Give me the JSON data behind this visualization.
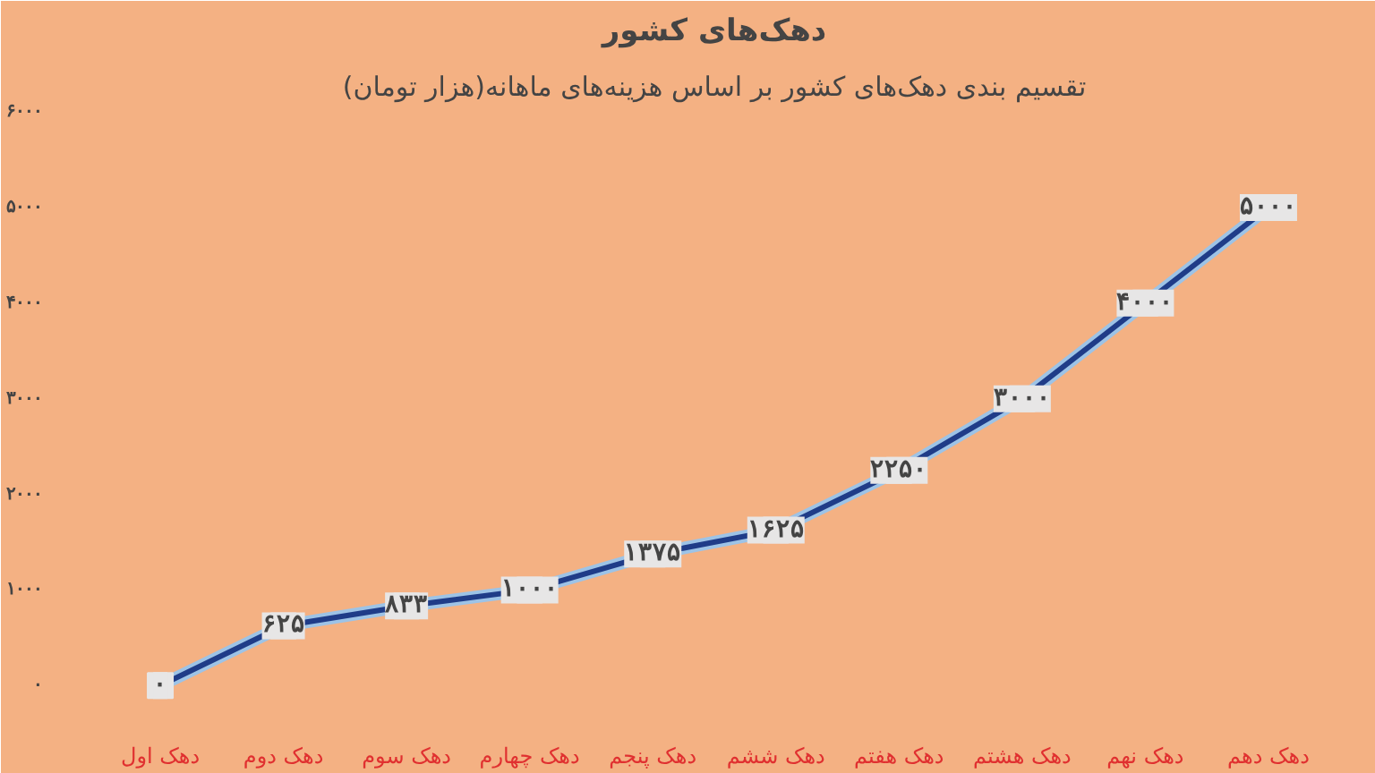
{
  "chart_data": {
    "type": "line",
    "title": "دهک‌های کشور",
    "subtitle": "تقسیم بندی دهک‌های کشور بر اساس هزینه‌های ماهانه(هزار تومان)",
    "categories": [
      "دهک اول",
      "دهک دوم",
      "دهک سوم",
      "دهک چهارم",
      "دهک پنجم",
      "دهک ششم",
      "دهک هفتم",
      "دهک هشتم",
      "دهک نهم",
      "دهک دهم"
    ],
    "values": [
      0,
      625,
      833,
      1000,
      1375,
      1625,
      2250,
      3000,
      4000,
      5000
    ],
    "value_labels": [
      "۰",
      "۶۲۵",
      "۸۳۳",
      "۱۰۰۰",
      "۱۳۷۵",
      "۱۶۲۵",
      "۲۲۵۰",
      "۳۰۰۰",
      "۴۰۰۰",
      "۵۰۰۰"
    ],
    "color": "#1f3c88",
    "ylim": [
      -400,
      6000
    ],
    "yticks": [
      {
        "value": 0,
        "label": "۰"
      },
      {
        "value": 1000,
        "label": "۱۰۰۰"
      },
      {
        "value": 2000,
        "label": "۲۰۰۰"
      },
      {
        "value": 3000,
        "label": "۳۰۰۰"
      },
      {
        "value": 4000,
        "label": "۴۰۰۰"
      },
      {
        "value": 5000,
        "label": "۵۰۰۰"
      },
      {
        "value": 6000,
        "label": "۶۰۰۰"
      }
    ],
    "grid": false,
    "marker": "square",
    "line_style": "solid"
  }
}
